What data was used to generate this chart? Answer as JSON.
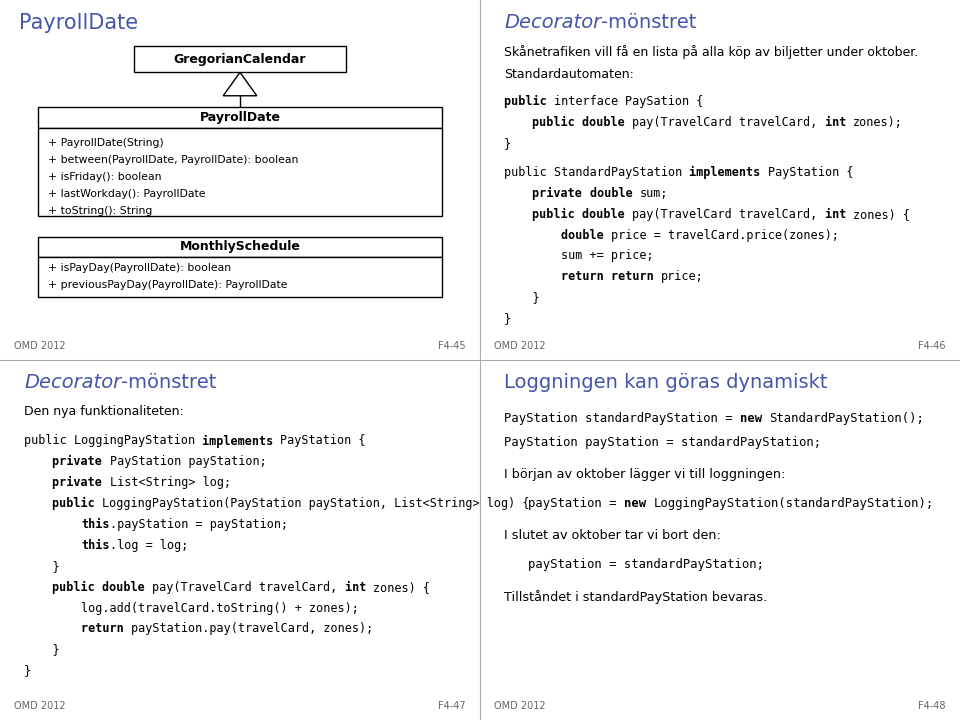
{
  "bg_color": "#ffffff",
  "panel_bg": "#ffffff",
  "title_color": "#4455aa",
  "border_color": "#999999",
  "text_color": "#111111",
  "footer_color": "#666666",
  "divider_color": "#aaaaaa",
  "panel1": {
    "title": "PayrollDate",
    "footer_left": "OMD 2012",
    "footer_right": "F4-45",
    "gc_label": "GregorianCalendar",
    "payroll_header": "PayrollDate",
    "payroll_methods": [
      "+ PayrollDate(String)",
      "+ between(PayrollDate, PayrollDate): boolean",
      "+ isFriday(): boolean",
      "+ lastWorkday(): PayrollDate",
      "+ toString(): String"
    ],
    "monthly_header": "MonthlySchedule",
    "monthly_methods": [
      "+ isPayDay(PayrollDate): boolean",
      "+ previousPayDay(PayrollDate): PayrollDate"
    ]
  },
  "panel2": {
    "title_italic": "Decorator",
    "title_normal": "-mönstret",
    "footer_left": "OMD 2012",
    "footer_right": "F4-46"
  },
  "panel3": {
    "title_italic": "Decorator",
    "title_normal": "-mönstret",
    "footer_left": "OMD 2012",
    "footer_right": "F4-47"
  },
  "panel4": {
    "title": "Loggningen kan göras dynamiskt",
    "footer_left": "OMD 2012",
    "footer_right": "F4-48"
  }
}
